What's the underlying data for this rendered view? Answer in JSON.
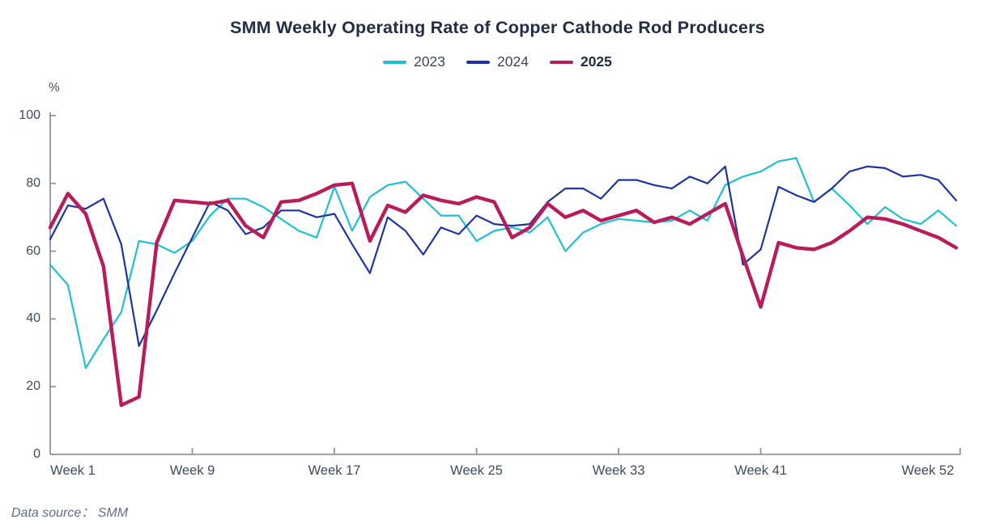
{
  "title": "SMM Weekly Operating Rate of Copper Cathode Rod Producers",
  "unit_label": "%",
  "footer": {
    "text": "Data source：  SMM"
  },
  "colors": {
    "series_2023": "#1ec1d3",
    "series_2024": "#1d35a1",
    "series_2025": "#b91c5b",
    "axis": "#8e95a3",
    "tick_text": "#3f4b5f",
    "title_text": "#222d48"
  },
  "chart_data": {
    "type": "line",
    "title": "SMM Weekly Operating Rate of Copper Cathode Rod Producers",
    "ylabel": "%",
    "ylim": [
      0,
      100
    ],
    "grid": false,
    "legend_position": "top-center",
    "x_unit": "week",
    "x_range": [
      1,
      52
    ],
    "y_ticks": [
      0,
      20,
      40,
      60,
      80,
      100
    ],
    "x_ticks": [
      {
        "week": 1,
        "label": "Week 1"
      },
      {
        "week": 9,
        "label": "Week 9"
      },
      {
        "week": 17,
        "label": "Week 17"
      },
      {
        "week": 25,
        "label": "Week 25"
      },
      {
        "week": 33,
        "label": "Week 33"
      },
      {
        "week": 41,
        "label": "Week 41"
      },
      {
        "week": 52,
        "label": "Week 52"
      }
    ],
    "series": [
      {
        "name": "2023",
        "color": "#1ec1d3",
        "width": 2.2,
        "emphasis": false,
        "values": [
          56,
          50,
          25.5,
          34,
          42,
          63,
          62,
          59.5,
          63,
          70.5,
          75.5,
          75.5,
          73,
          69.5,
          66,
          64,
          79,
          66,
          76,
          79.5,
          80.5,
          75.5,
          70.5,
          70.5,
          63,
          66,
          67,
          65.5,
          70,
          60,
          65.5,
          68,
          69.5,
          69,
          68.5,
          69,
          72,
          69,
          79.5,
          82,
          83.5,
          86.5,
          87.5,
          74.5,
          78.5,
          73.5,
          68,
          73,
          69.5,
          68,
          72,
          67.5
        ]
      },
      {
        "name": "2024",
        "color": "#1d35a1",
        "width": 2.2,
        "emphasis": false,
        "values": [
          63.5,
          73.5,
          72.5,
          75.5,
          62,
          32,
          42.5,
          53.5,
          64,
          74.5,
          72,
          65,
          67,
          72,
          72,
          70,
          71,
          62,
          53.5,
          70,
          66,
          59,
          67,
          65,
          70.5,
          68,
          67.5,
          68,
          74.5,
          78.5,
          78.5,
          75.5,
          81,
          81,
          79.5,
          78.5,
          82,
          80,
          85,
          56,
          60.5,
          79,
          76.5,
          74.5,
          78.5,
          83.5,
          85,
          84.5,
          82,
          82.5,
          81,
          75
        ]
      },
      {
        "name": "2025",
        "color": "#b91c5b",
        "width": 4.4,
        "emphasis": true,
        "values": [
          67,
          77,
          71,
          55.5,
          14.5,
          17,
          62.5,
          75,
          74.5,
          74,
          75,
          67.5,
          64,
          74.5,
          75,
          77,
          79.5,
          80,
          63,
          73.5,
          71.5,
          76.5,
          75,
          74,
          76,
          74.5,
          64,
          67,
          74,
          70,
          72,
          69,
          70.5,
          72,
          68.5,
          70,
          68,
          71,
          74,
          58.5,
          43.5,
          62.5,
          61,
          60.5,
          62.5,
          66,
          70,
          69.5,
          68,
          66,
          64,
          61
        ]
      }
    ]
  }
}
